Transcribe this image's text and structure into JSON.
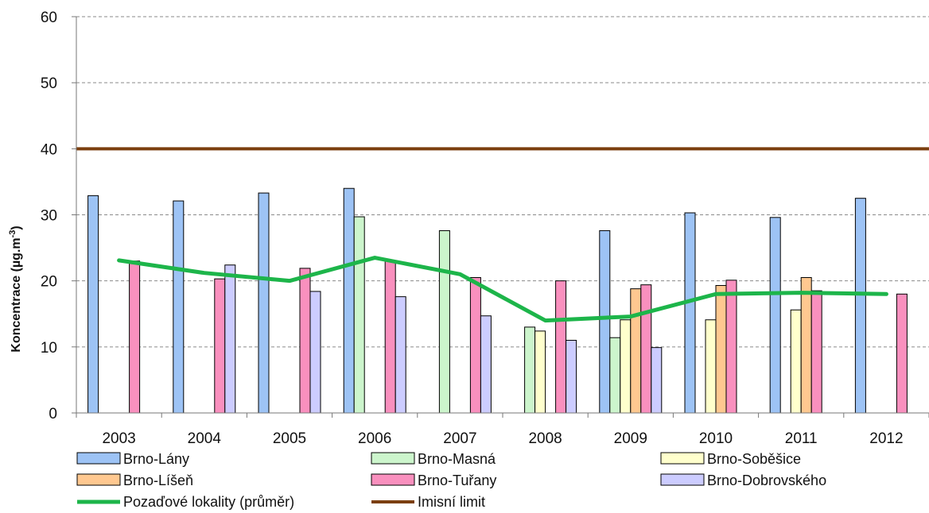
{
  "chart_data": {
    "type": "bar",
    "ylabel": "Koncentrace (µg.m",
    "ylabel_sup": "-3",
    "ylabel_close": ")",
    "ylim": [
      0,
      60
    ],
    "yticks": [
      "0",
      "10",
      "20",
      "30",
      "40",
      "50",
      "60"
    ],
    "grid": "horizontal dashed",
    "legend_placement": "bottom",
    "categories": [
      "2003",
      "2004",
      "2005",
      "2006",
      "2007",
      "2008",
      "2009",
      "2010",
      "2011",
      "2012"
    ],
    "series": [
      {
        "name": "Brno-Lány",
        "kind": "bar",
        "color": "#9DC3F5",
        "values": [
          32.9,
          32.1,
          33.3,
          34.0,
          null,
          null,
          27.6,
          30.3,
          29.6,
          32.5
        ]
      },
      {
        "name": "Brno-Masná",
        "kind": "bar",
        "color": "#CCF5CC",
        "values": [
          null,
          null,
          null,
          29.7,
          27.6,
          13.0,
          11.4,
          null,
          null,
          null
        ]
      },
      {
        "name": "Brno-Soběšice",
        "kind": "bar",
        "color": "#FFFFCC",
        "values": [
          null,
          null,
          null,
          null,
          null,
          12.4,
          14.1,
          14.1,
          15.6,
          null
        ]
      },
      {
        "name": "Brno-Líšeň",
        "kind": "bar",
        "color": "#FFC890",
        "values": [
          null,
          null,
          null,
          null,
          null,
          null,
          18.8,
          19.3,
          20.5,
          null
        ]
      },
      {
        "name": "Brno-Tuřany",
        "kind": "bar",
        "color": "#F990BE",
        "values": [
          23.0,
          20.3,
          21.9,
          23.0,
          20.5,
          20.0,
          19.4,
          20.1,
          18.5,
          18.0
        ]
      },
      {
        "name": "Brno-Dobrovského",
        "kind": "bar",
        "color": "#CCCCFF",
        "values": [
          null,
          22.4,
          18.4,
          17.6,
          14.7,
          11.0,
          9.9,
          null,
          null,
          null
        ]
      },
      {
        "name": "Pozaďové lokality (průměr)",
        "kind": "line",
        "color": "#1DB54A",
        "values": [
          23.1,
          21.2,
          20.0,
          23.5,
          21.0,
          14.0,
          14.6,
          18.0,
          18.2,
          18.0
        ]
      },
      {
        "name": "Imisní limit",
        "kind": "hline",
        "color": "#7B3F0F",
        "value": 40
      }
    ]
  }
}
